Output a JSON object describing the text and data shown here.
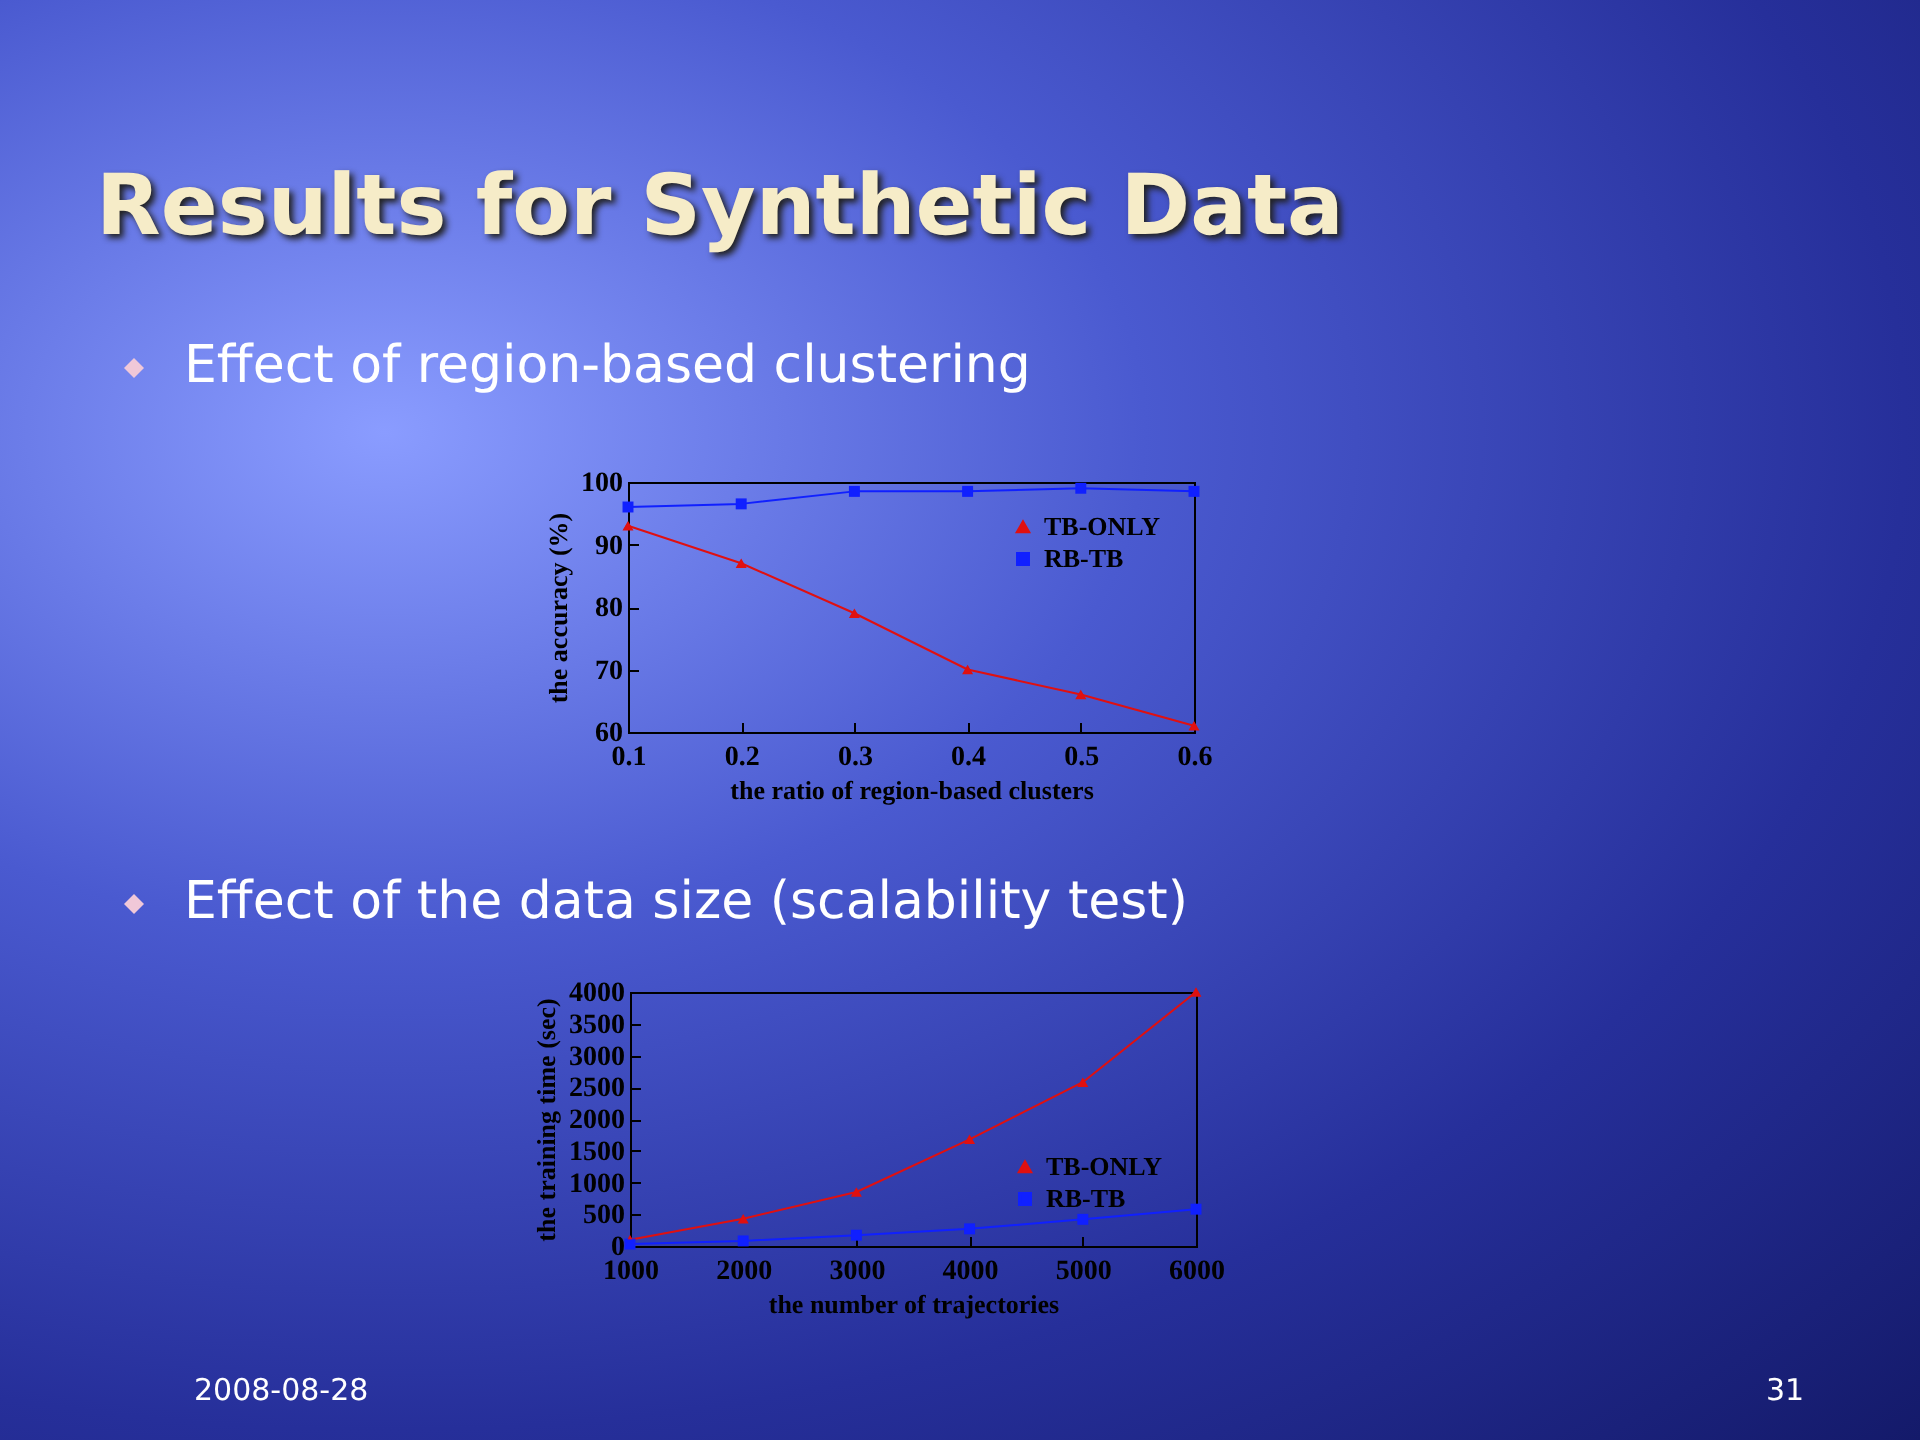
{
  "chart_data": [
    {
      "type": "line",
      "title": "Results for Synthetic Data",
      "subtitle": "Effect of region-based clustering",
      "xlabel": "the ratio of region-based clusters",
      "ylabel": "the accuracy (%)",
      "x": [
        0.1,
        0.2,
        0.3,
        0.4,
        0.5,
        0.6
      ],
      "xlim": [
        0.1,
        0.6
      ],
      "xticks": [
        {
          "value": 0.1,
          "label": "0.1"
        },
        {
          "value": 0.2,
          "label": "0.2"
        },
        {
          "value": 0.3,
          "label": "0.3"
        },
        {
          "value": 0.4,
          "label": "0.4"
        },
        {
          "value": 0.5,
          "label": "0.5"
        },
        {
          "value": 0.6,
          "label": "0.6"
        }
      ],
      "ylim": [
        60,
        100
      ],
      "yticks": [
        60,
        70,
        80,
        90,
        100
      ],
      "grid": false,
      "legend": "top right",
      "series": [
        {
          "name": "TB-ONLY",
          "color": "#e01010",
          "marker": "triangle",
          "values": [
            93,
            87,
            79,
            70,
            66,
            61
          ]
        },
        {
          "name": "RB-TB",
          "color": "#1020ff",
          "marker": "square",
          "values": [
            96,
            96.5,
            98.5,
            98.5,
            99,
            98.5
          ]
        }
      ]
    },
    {
      "type": "line",
      "subtitle": "Effect of the data size (scalability test)",
      "xlabel": "the number of trajectories",
      "ylabel": "the training time (sec)",
      "x": [
        1000,
        2000,
        3000,
        4000,
        5000,
        6000
      ],
      "xlim": [
        1000,
        6000
      ],
      "xticks": [
        1000,
        2000,
        3000,
        4000,
        5000,
        6000
      ],
      "ylim": [
        0,
        4000
      ],
      "yticks": [
        0,
        500,
        1000,
        1500,
        2000,
        2500,
        3000,
        3500,
        4000
      ],
      "grid": false,
      "legend": "bottom right",
      "annotations": [
        "2008-08-28",
        "31"
      ],
      "series": [
        {
          "name": "TB-ONLY",
          "color": "#e01010",
          "marker": "triangle",
          "values": [
            100,
            430,
            850,
            1680,
            2580,
            4000
          ]
        },
        {
          "name": "RB-TB",
          "color": "#1020ff",
          "marker": "square",
          "values": [
            30,
            80,
            170,
            270,
            420,
            580
          ]
        }
      ]
    }
  ]
}
